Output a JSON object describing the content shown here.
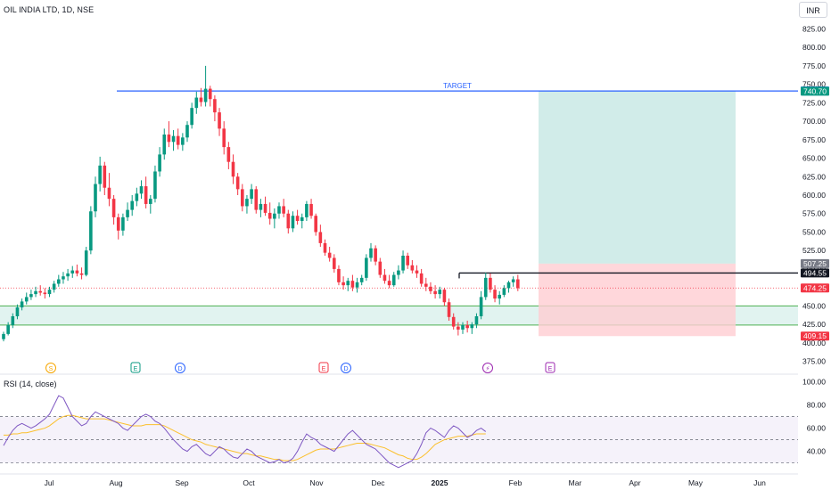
{
  "header": {
    "title": "OIL INDIA LTD, 1D, NSE",
    "currency_button": "INR"
  },
  "rsi_panel": {
    "label": "RSI (14, close)"
  },
  "annotations": {
    "target_label": "TARGET"
  },
  "colors": {
    "up": "#089981",
    "down": "#f23645",
    "target_line": "#2962ff",
    "target_text": "#2962ff",
    "support_band": "#089981",
    "profit_zone": "#b2dfdb",
    "loss_zone": "#ffcdd2",
    "rsi_line": "#7e57c2",
    "rsi_ma": "#fbc02d"
  },
  "chart_data": [
    {
      "type": "candlestick",
      "title": "OIL INDIA LTD, 1D, NSE",
      "ylim": [
        360,
        840
      ],
      "y_ticks": [
        "825.00",
        "800.00",
        "775.00",
        "750.00",
        "725.00",
        "700.00",
        "675.00",
        "650.00",
        "625.00",
        "600.00",
        "575.00",
        "550.00",
        "525.00",
        "500.00",
        "475.00",
        "450.00",
        "425.00",
        "400.00",
        "375.00"
      ],
      "x_ticks": [
        "Jul",
        "Aug",
        "Sep",
        "Oct",
        "Nov",
        "Dec",
        "2025",
        "Feb",
        "Mar",
        "Apr",
        "May",
        "Jun"
      ],
      "price_labels": [
        {
          "value": 741.0,
          "text": "741.00",
          "color": "#2962ff"
        },
        {
          "value": 740.7,
          "text": "740.70",
          "color": "#089981"
        },
        {
          "value": 507.25,
          "text": "507.25",
          "color": "#787b86"
        },
        {
          "value": 494.55,
          "text": "494.55",
          "color": "#131722"
        },
        {
          "value": 474.25,
          "text": "474.25",
          "color": "#f23645"
        },
        {
          "value": 409.15,
          "text": "409.15",
          "color": "#f23645"
        }
      ],
      "target_price": 741.0,
      "entry_price": 494.55,
      "current_price": 474.25,
      "support_zone": [
        424,
        450
      ],
      "position": {
        "entry": 507.25,
        "target": 740.7,
        "stop": 409.15,
        "start_month": "Feb",
        "end_month": "May"
      },
      "event_markers": [
        {
          "label": "S",
          "color": "#f7a600"
        },
        {
          "label": "E",
          "color": "#089981"
        },
        {
          "label": "D",
          "color": "#2962ff"
        },
        {
          "label": "E",
          "color": "#f23645"
        },
        {
          "label": "D",
          "color": "#2962ff"
        },
        {
          "label": "⚡",
          "color": "#9c27b0"
        },
        {
          "label": "E",
          "color": "#9c27b0"
        }
      ],
      "candles": [
        [
          405,
          415,
          402,
          412
        ],
        [
          412,
          428,
          410,
          424
        ],
        [
          424,
          440,
          420,
          436
        ],
        [
          436,
          452,
          432,
          448
        ],
        [
          448,
          460,
          444,
          456
        ],
        [
          456,
          468,
          452,
          462
        ],
        [
          462,
          472,
          458,
          466
        ],
        [
          466,
          476,
          462,
          470
        ],
        [
          470,
          478,
          464,
          468
        ],
        [
          468,
          474,
          460,
          466
        ],
        [
          466,
          476,
          462,
          472
        ],
        [
          472,
          484,
          468,
          480
        ],
        [
          480,
          492,
          476,
          486
        ],
        [
          486,
          496,
          480,
          490
        ],
        [
          490,
          500,
          484,
          494
        ],
        [
          494,
          504,
          488,
          498
        ],
        [
          498,
          506,
          490,
          494
        ],
        [
          494,
          502,
          486,
          492
        ],
        [
          492,
          530,
          490,
          525
        ],
        [
          525,
          585,
          520,
          578
        ],
        [
          578,
          625,
          570,
          615
        ],
        [
          615,
          652,
          605,
          640
        ],
        [
          640,
          645,
          600,
          610
        ],
        [
          610,
          630,
          585,
          595
        ],
        [
          595,
          600,
          560,
          570
        ],
        [
          570,
          575,
          540,
          552
        ],
        [
          552,
          575,
          545,
          570
        ],
        [
          570,
          590,
          565,
          580
        ],
        [
          580,
          600,
          572,
          592
        ],
        [
          592,
          610,
          585,
          602
        ],
        [
          602,
          620,
          595,
          612
        ],
        [
          612,
          625,
          582,
          588
        ],
        [
          588,
          600,
          575,
          595
        ],
        [
          595,
          640,
          590,
          632
        ],
        [
          632,
          665,
          625,
          655
        ],
        [
          655,
          690,
          648,
          682
        ],
        [
          682,
          700,
          665,
          672
        ],
        [
          672,
          688,
          660,
          680
        ],
        [
          680,
          690,
          662,
          668
        ],
        [
          668,
          684,
          660,
          678
        ],
        [
          678,
          700,
          672,
          695
        ],
        [
          695,
          725,
          690,
          718
        ],
        [
          718,
          740,
          710,
          732
        ],
        [
          732,
          745,
          720,
          726
        ],
        [
          726,
          775,
          720,
          744
        ],
        [
          744,
          748,
          720,
          730
        ],
        [
          730,
          735,
          700,
          712
        ],
        [
          712,
          718,
          680,
          690
        ],
        [
          690,
          700,
          655,
          665
        ],
        [
          665,
          672,
          635,
          645
        ],
        [
          645,
          655,
          615,
          625
        ],
        [
          625,
          630,
          600,
          608
        ],
        [
          608,
          615,
          578,
          585
        ],
        [
          585,
          600,
          575,
          595
        ],
        [
          595,
          615,
          588,
          608
        ],
        [
          608,
          612,
          575,
          580
        ],
        [
          580,
          595,
          570,
          588
        ],
        [
          588,
          598,
          572,
          576
        ],
        [
          576,
          590,
          560,
          568
        ],
        [
          568,
          582,
          555,
          575
        ],
        [
          575,
          590,
          568,
          585
        ],
        [
          585,
          595,
          570,
          575
        ],
        [
          575,
          580,
          548,
          555
        ],
        [
          555,
          578,
          550,
          572
        ],
        [
          572,
          580,
          560,
          565
        ],
        [
          565,
          575,
          555,
          570
        ],
        [
          570,
          592,
          565,
          588
        ],
        [
          588,
          595,
          568,
          572
        ],
        [
          572,
          575,
          545,
          550
        ],
        [
          550,
          560,
          530,
          535
        ],
        [
          535,
          540,
          518,
          522
        ],
        [
          522,
          530,
          510,
          515
        ],
        [
          515,
          520,
          495,
          500
        ],
        [
          500,
          505,
          478,
          482
        ],
        [
          482,
          490,
          472,
          478
        ],
        [
          478,
          488,
          470,
          484
        ],
        [
          484,
          492,
          470,
          475
        ],
        [
          475,
          488,
          468,
          482
        ],
        [
          482,
          492,
          478,
          488
        ],
        [
          488,
          520,
          484,
          515
        ],
        [
          515,
          535,
          510,
          528
        ],
        [
          528,
          532,
          505,
          510
        ],
        [
          510,
          515,
          488,
          492
        ],
        [
          492,
          500,
          480,
          484
        ],
        [
          484,
          492,
          474,
          478
        ],
        [
          478,
          496,
          476,
          492
        ],
        [
          492,
          505,
          486,
          498
        ],
        [
          498,
          525,
          494,
          518
        ],
        [
          518,
          522,
          500,
          505
        ],
        [
          505,
          512,
          494,
          498
        ],
        [
          498,
          505,
          488,
          494
        ],
        [
          494,
          500,
          476,
          480
        ],
        [
          480,
          488,
          470,
          476
        ],
        [
          476,
          482,
          466,
          470
        ],
        [
          470,
          478,
          460,
          466
        ],
        [
          466,
          476,
          460,
          472
        ],
        [
          472,
          474,
          450,
          455
        ],
        [
          455,
          460,
          430,
          435
        ],
        [
          435,
          440,
          418,
          422
        ],
        [
          422,
          428,
          410,
          418
        ],
        [
          418,
          428,
          412,
          424
        ],
        [
          424,
          430,
          414,
          420
        ],
        [
          420,
          428,
          412,
          425
        ],
        [
          425,
          440,
          420,
          436
        ],
        [
          436,
          470,
          432,
          462
        ],
        [
          462,
          495,
          458,
          488
        ],
        [
          488,
          494,
          468,
          472
        ],
        [
          472,
          478,
          455,
          460
        ],
        [
          460,
          470,
          452,
          465
        ],
        [
          465,
          478,
          462,
          474
        ],
        [
          474,
          484,
          468,
          482
        ],
        [
          482,
          490,
          476,
          486
        ],
        [
          486,
          492,
          470,
          474
        ]
      ]
    },
    {
      "type": "line",
      "title": "RSI (14, close)",
      "ylim": [
        22,
        105
      ],
      "y_ticks": [
        "100.00",
        "80.00",
        "60.00",
        "40.00"
      ],
      "overbought": 70,
      "oversold": 30,
      "middle": 50,
      "series": [
        {
          "values": [
            45,
            52,
            58,
            62,
            64,
            62,
            60,
            62,
            65,
            68,
            72,
            80,
            88,
            86,
            78,
            70,
            66,
            62,
            64,
            70,
            74,
            72,
            70,
            68,
            66,
            64,
            60,
            58,
            62,
            66,
            70,
            72,
            70,
            66,
            64,
            60,
            55,
            50,
            46,
            42,
            40,
            44,
            46,
            42,
            38,
            36,
            40,
            44,
            42,
            38,
            35,
            34,
            38,
            42,
            40,
            36,
            34,
            32,
            30,
            31,
            33,
            30,
            31,
            34,
            40,
            48,
            55,
            52,
            50,
            46,
            44,
            42,
            40,
            45,
            50,
            55,
            58,
            54,
            50,
            46,
            44,
            42,
            38,
            34,
            30,
            28,
            26,
            28,
            30,
            32,
            38,
            46,
            56,
            60,
            58,
            55,
            52,
            58,
            62,
            60,
            56,
            52,
            54,
            58,
            60,
            57
          ]
        },
        {
          "values": [
            54,
            54,
            55,
            55,
            56,
            56,
            57,
            58,
            59,
            60,
            62,
            65,
            68,
            70,
            71,
            71,
            70,
            69,
            68,
            68,
            68,
            68,
            68,
            67,
            66,
            65,
            64,
            63,
            62,
            62,
            62,
            63,
            63,
            63,
            63,
            62,
            60,
            58,
            56,
            54,
            52,
            50,
            49,
            48,
            46,
            45,
            44,
            43,
            42,
            41,
            40,
            39,
            38,
            38,
            37,
            36,
            36,
            35,
            34,
            33,
            33,
            32,
            32,
            32,
            33,
            35,
            37,
            39,
            41,
            42,
            42,
            42,
            42,
            43,
            44,
            45,
            46,
            47,
            47,
            47,
            46,
            45,
            44,
            43,
            41,
            39,
            37,
            36,
            34,
            33,
            33,
            35,
            38,
            42,
            46,
            48,
            50,
            51,
            52,
            53,
            53,
            53,
            54,
            55,
            55,
            55
          ]
        }
      ]
    }
  ]
}
